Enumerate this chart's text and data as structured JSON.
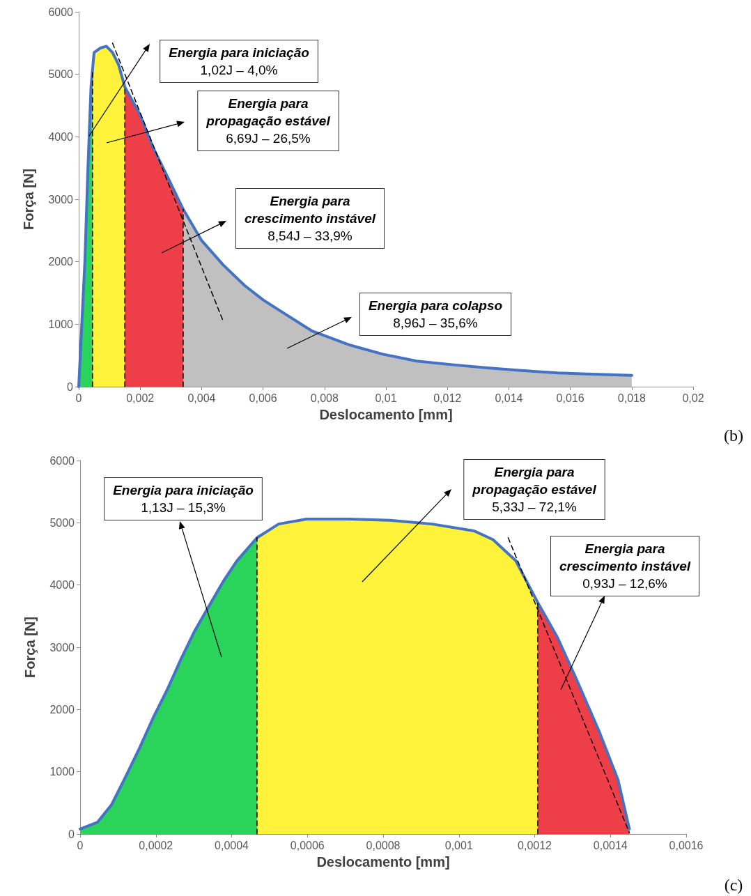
{
  "chart_data": [
    {
      "type": "line",
      "xlabel": "Deslocamento [mm]",
      "ylabel": "Força [N]",
      "xlim": [
        0,
        0.02
      ],
      "xticks": [
        0,
        {
          "value": 0.002,
          "label": "0,002"
        },
        {
          "value": 0.004,
          "label": "0,004"
        },
        {
          "value": 0.006,
          "label": "0,006"
        },
        {
          "value": 0.008,
          "label": "0,008"
        },
        {
          "value": 0.01,
          "label": "0,01"
        },
        {
          "value": 0.012,
          "label": "0,012"
        },
        {
          "value": 0.014,
          "label": "0,014"
        },
        {
          "value": 0.016,
          "label": "0,016"
        },
        {
          "value": 0.018,
          "label": "0,018"
        },
        {
          "value": 0.02,
          "label": "0,02"
        }
      ],
      "ylim": [
        0,
        6000
      ],
      "yticks": [
        0,
        1000,
        2000,
        3000,
        4000,
        5000,
        6000
      ],
      "grid": false,
      "marker": "none",
      "series": [
        {
          "type": "area",
          "color": "#2ad45a",
          "x": [
            0,
            0.0002,
            0.0003,
            0.0004,
            0.00045
          ],
          "values": [
            0,
            2000,
            3500,
            4800,
            5080
          ]
        },
        {
          "type": "area",
          "color": "#fff23a",
          "x": [
            0.00045,
            0.0005,
            0.0007,
            0.0009,
            0.0011,
            0.0013,
            0.0015
          ],
          "values": [
            5080,
            5350,
            5420,
            5450,
            5350,
            5150,
            4800
          ]
        },
        {
          "type": "area",
          "color": "#ee3e48",
          "x": [
            0.0015,
            0.002,
            0.0024,
            0.0029,
            0.0034
          ],
          "values": [
            4800,
            4350,
            3850,
            3350,
            2840
          ]
        },
        {
          "type": "area",
          "color": "#c0c0c0",
          "x": [
            0.0034,
            0.004,
            0.0047,
            0.0054,
            0.006,
            0.0067,
            0.0076,
            0.0088,
            0.0099,
            0.011,
            0.0122,
            0.0133,
            0.0144,
            0.0156,
            0.0167,
            0.018
          ],
          "values": [
            2840,
            2340,
            1950,
            1620,
            1390,
            1170,
            890,
            670,
            520,
            410,
            350,
            300,
            260,
            220,
            200,
            180
          ]
        },
        {
          "color": "#000000",
          "line_style": "dashed",
          "x": [
            0.00045,
            0.00045
          ],
          "values": [
            0,
            5080
          ]
        },
        {
          "color": "#000000",
          "line_style": "dashed",
          "x": [
            0.0015,
            0.0015
          ],
          "values": [
            0,
            4800
          ]
        },
        {
          "color": "#000000",
          "line_style": "dashed",
          "x": [
            0.0034,
            0.0034
          ],
          "values": [
            0,
            2840
          ]
        },
        {
          "color": "#4472c4",
          "x": [
            0,
            0.0002,
            0.0003,
            0.0004,
            0.0005,
            0.0007,
            0.0009,
            0.0011,
            0.0013,
            0.0015,
            0.002,
            0.0024,
            0.0029,
            0.0034,
            0.004,
            0.0047,
            0.0054,
            0.006,
            0.0067,
            0.0076,
            0.0088,
            0.0099,
            0.011,
            0.0122,
            0.0133,
            0.0144,
            0.0156,
            0.0167,
            0.018
          ],
          "values": [
            0,
            2000,
            3500,
            4800,
            5350,
            5420,
            5450,
            5350,
            5150,
            4800,
            4350,
            3850,
            3350,
            2840,
            2340,
            1950,
            1620,
            1390,
            1170,
            890,
            670,
            520,
            410,
            350,
            300,
            260,
            220,
            200,
            180
          ]
        },
        {
          "color": "#000000",
          "line_style": "dashed",
          "x": [
            0.0011,
            0.0047
          ],
          "values": [
            5500,
            1050
          ]
        }
      ],
      "annotations": [
        "Energia para iniciação\n1,02J – 4,0%",
        "Energia para\npropagação estável\n6,69J – 26,5%",
        "Energia para\ncrescimento instável\n8,54J – 33,9%",
        "Energia para colapso\n8,96J – 35,6%",
        "(b)"
      ]
    },
    {
      "type": "line",
      "xlabel": "Deslocamento [mm]",
      "ylabel": "Força [N]",
      "xlim": [
        0,
        0.0016
      ],
      "xticks": [
        0,
        {
          "value": 0.0002,
          "label": "0,0002"
        },
        {
          "value": 0.0004,
          "label": "0,0004"
        },
        {
          "value": 0.0006,
          "label": "0,0006"
        },
        {
          "value": 0.0008,
          "label": "0,0008"
        },
        {
          "value": 0.001,
          "label": "0,001"
        },
        {
          "value": 0.0012,
          "label": "0,0012"
        },
        {
          "value": 0.0014,
          "label": "0,0014"
        },
        {
          "value": 0.0016,
          "label": "0,0016"
        }
      ],
      "ylim": [
        0,
        6000
      ],
      "yticks": [
        0,
        1000,
        2000,
        3000,
        4000,
        5000,
        6000
      ],
      "grid": false,
      "marker": "none",
      "series": [
        {
          "type": "area",
          "color": "#2ad45a",
          "x": [
            0,
            4.6e-05,
            8.3e-05,
            0.00012,
            0.000156,
            0.000193,
            0.00023,
            0.000267,
            0.000303,
            0.00034,
            0.000377,
            0.000414,
            0.000467
          ],
          "values": [
            80,
            190,
            470,
            920,
            1370,
            1870,
            2320,
            2820,
            3270,
            3660,
            4050,
            4390,
            4760
          ]
        },
        {
          "type": "area",
          "color": "#fff23a",
          "x": [
            0.000467,
            0.000524,
            0.000598,
            0.000708,
            0.000818,
            0.000929,
            0.00104,
            0.00109,
            0.00115,
            0.001208
          ],
          "values": [
            4760,
            4980,
            5060,
            5060,
            5040,
            4980,
            4870,
            4730,
            4390,
            3720
          ]
        },
        {
          "type": "area",
          "color": "#ee3e48",
          "x": [
            0.001208,
            0.00126,
            0.00131,
            0.00137,
            0.00142,
            0.00145
          ],
          "values": [
            3720,
            3160,
            2490,
            1650,
            870,
            80
          ]
        },
        {
          "color": "#000000",
          "line_style": "dashed",
          "x": [
            0.000467,
            0.000467
          ],
          "values": [
            0,
            4760
          ]
        },
        {
          "color": "#000000",
          "line_style": "dashed",
          "x": [
            0.001208,
            0.001208
          ],
          "values": [
            0,
            3720
          ]
        },
        {
          "color": "#4472c4",
          "x": [
            0,
            4.6e-05,
            8.3e-05,
            0.00012,
            0.000156,
            0.000193,
            0.00023,
            0.000267,
            0.000303,
            0.00034,
            0.000377,
            0.000414,
            0.000467,
            0.000524,
            0.000598,
            0.000708,
            0.000818,
            0.000929,
            0.00104,
            0.00109,
            0.00115,
            0.001208,
            0.00126,
            0.00131,
            0.00137,
            0.00142,
            0.00145
          ],
          "values": [
            80,
            190,
            470,
            920,
            1370,
            1870,
            2320,
            2820,
            3270,
            3660,
            4050,
            4390,
            4760,
            4980,
            5060,
            5060,
            5040,
            4980,
            4870,
            4730,
            4390,
            3720,
            3160,
            2490,
            1650,
            870,
            80
          ]
        },
        {
          "color": "#000000",
          "line_style": "dashed",
          "x": [
            0.00113,
            0.00145
          ],
          "values": [
            4760,
            20
          ]
        }
      ],
      "annotations": [
        "Energia para iniciação\n1,13J – 15,3%",
        "Energia para\npropagação estável\n5,33J – 72,1%",
        "Energia para\ncrescimento instável\n0,93J – 12,6%",
        "(c)"
      ]
    }
  ]
}
